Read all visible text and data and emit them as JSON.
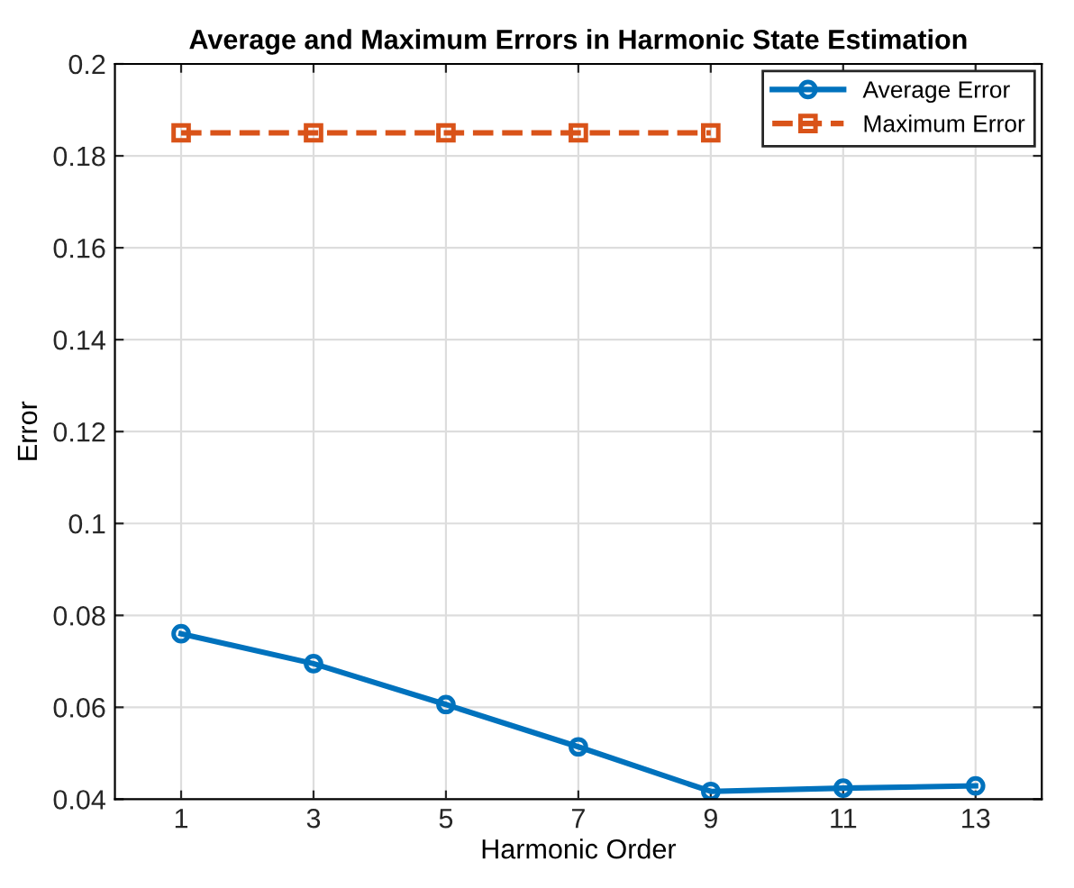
{
  "chart_data": {
    "type": "line",
    "title": "Average and Maximum Errors in Harmonic State Estimation",
    "xlabel": "Harmonic Order",
    "ylabel": "Error",
    "x": [
      1,
      3,
      5,
      7,
      9,
      11,
      13
    ],
    "series": [
      {
        "name": "Average Error",
        "color": "#0072bd",
        "values": [
          0.076,
          0.0695,
          0.0606,
          0.0514,
          0.0417,
          0.0424,
          0.0429
        ],
        "marker": "circle",
        "line_style": "solid"
      },
      {
        "name": "Maximum Error",
        "color": "#d95319",
        "values": [
          0.185,
          0.185,
          0.185,
          0.185,
          0.185,
          null,
          null
        ],
        "marker": "square",
        "line_style": "dashed"
      }
    ],
    "xlim": [
      0,
      14
    ],
    "xticks": [
      1,
      3,
      5,
      7,
      9,
      11,
      13
    ],
    "ylim": [
      0.04,
      0.2
    ],
    "yticks": [
      0.04,
      0.06,
      0.08,
      0.1,
      0.12,
      0.14,
      0.16,
      0.18,
      0.2
    ],
    "grid": true,
    "legend": "top right"
  }
}
